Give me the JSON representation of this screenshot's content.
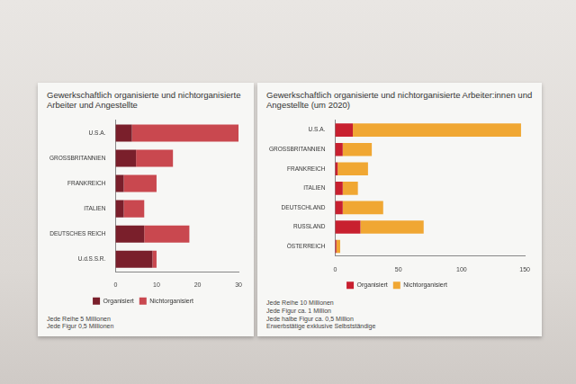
{
  "chart_data": [
    {
      "type": "bar",
      "orientation": "horizontal",
      "stacked": true,
      "title": "Gewerkschaftlich organisierte und nichtorganisierte Arbeiter und Angestellte",
      "categories": [
        "U.S.A.",
        "GROSSBRITANNIEN",
        "FRANKREICH",
        "ITALIEN",
        "DEUTSCHES REICH",
        "U.d.S.S.R."
      ],
      "series": [
        {
          "name": "Organisiert",
          "color": "#7a1f2b",
          "values": [
            4,
            5,
            2,
            2,
            7,
            9
          ]
        },
        {
          "name": "Nichtorganisiert",
          "color": "#c9484f",
          "values": [
            26,
            9,
            8,
            5,
            11,
            1
          ]
        }
      ],
      "xlim": [
        0,
        30
      ],
      "xticks": [
        0,
        10,
        20,
        30
      ],
      "legend": "bottom",
      "annotations": [
        "Jede Reihe 5 Millionen",
        "Jede Figur 0,5 Millionen"
      ]
    },
    {
      "type": "bar",
      "orientation": "horizontal",
      "stacked": true,
      "title": "Gewerkschaftlich organisierte und nichtorganisierte Arbeiter:innen und Angestellte (um 2020)",
      "categories": [
        "U.S.A.",
        "GROSSBRITANNIEN",
        "FRANKREICH",
        "ITALIEN",
        "DEUTSCHLAND",
        "RUSSLAND",
        "ÖSTERREICH"
      ],
      "series": [
        {
          "name": "Organisiert",
          "color": "#c8202f",
          "values": [
            14,
            6,
            2,
            6,
            6,
            20,
            1
          ]
        },
        {
          "name": "Nichtorganisiert",
          "color": "#f0a733",
          "values": [
            133,
            23,
            24,
            12,
            32,
            50,
            3
          ]
        }
      ],
      "xlim": [
        0,
        150
      ],
      "xticks": [
        0,
        50,
        100,
        150
      ],
      "legend": "bottom",
      "annotations": [
        "Jede Reihe 10 Millionen",
        "Jede Figur ca. 1 Million",
        "Jede halbe Figur ca. 0,5 Million",
        "Erwerbstätige exklusive Selbstständige"
      ]
    }
  ]
}
